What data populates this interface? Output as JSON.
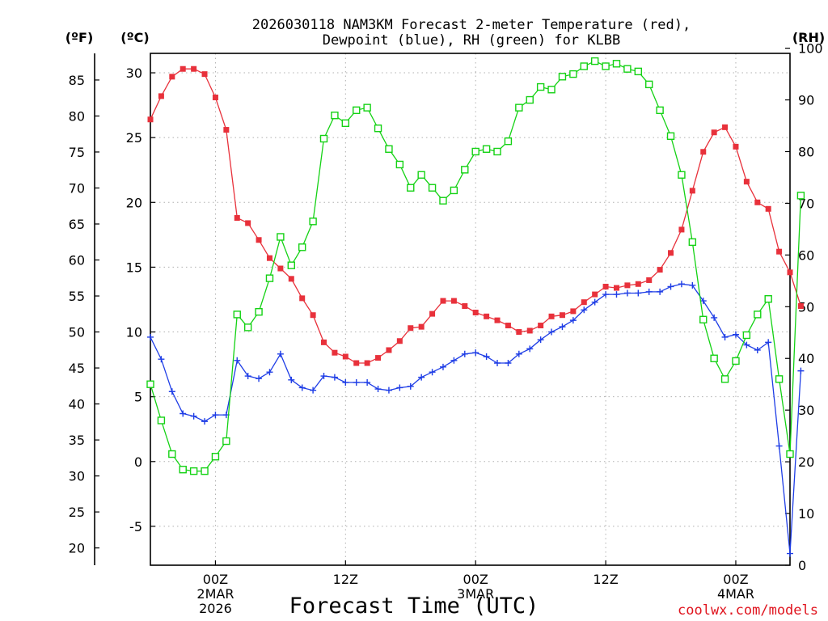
{
  "chart_data": {
    "type": "line",
    "title_lines": [
      "2026030118 NAM3KM Forecast 2-meter Temperature (red),",
      "Dewpoint (blue), RH (green) for KLBB"
    ],
    "xlabel": "Forecast Time (UTC)",
    "credit": "coolwx.com/models",
    "units": {
      "fahrenheit": "(ºF)",
      "celsius": "(ºC)",
      "rh": "(RH)"
    },
    "x_start_hour": 0,
    "x_end_hour": 59,
    "x_ticks": [
      {
        "hour": 6,
        "lines": [
          "00Z",
          "2MAR",
          "2026"
        ]
      },
      {
        "hour": 18,
        "lines": [
          "12Z"
        ]
      },
      {
        "hour": 30,
        "lines": [
          "00Z",
          "3MAR"
        ]
      },
      {
        "hour": 42,
        "lines": [
          "12Z"
        ]
      },
      {
        "hour": 54,
        "lines": [
          "00Z",
          "4MAR"
        ]
      }
    ],
    "celsius_axis": {
      "range": [
        -8,
        31.5
      ],
      "ticks": [
        -5,
        0,
        5,
        10,
        15,
        20,
        25,
        30
      ]
    },
    "fahrenheit_axis": {
      "ticks": [
        20,
        25,
        30,
        35,
        40,
        45,
        50,
        55,
        60,
        65,
        70,
        75,
        80,
        85
      ]
    },
    "rh_axis": {
      "range": [
        0,
        99
      ],
      "ticks": [
        0,
        10,
        20,
        30,
        40,
        50,
        60,
        70,
        80,
        90,
        100
      ]
    },
    "grid": true,
    "series": [
      {
        "name": "Temperature (°C)",
        "color": "#e8313b",
        "marker": "filled-square",
        "axis": "celsius",
        "values": [
          26.4,
          28.2,
          29.7,
          30.3,
          30.3,
          29.9,
          28.1,
          25.6,
          18.8,
          18.4,
          17.1,
          15.7,
          14.9,
          14.1,
          12.6,
          11.3,
          9.2,
          8.4,
          8.1,
          7.6,
          7.6,
          8.0,
          8.6,
          9.3,
          10.3,
          10.4,
          11.4,
          12.4,
          12.4,
          12.0,
          11.5,
          11.2,
          10.9,
          10.5,
          10.0,
          10.1,
          10.5,
          11.2,
          11.3,
          11.6,
          12.3,
          12.9,
          13.5,
          13.4,
          13.6,
          13.7,
          14.0,
          14.8,
          16.1,
          17.9,
          20.9,
          23.9,
          25.4,
          25.8,
          24.3,
          21.6,
          20.0,
          19.5,
          16.2,
          14.6,
          12.0
        ]
      },
      {
        "name": "Dewpoint (°C)",
        "color": "#1e3de6",
        "marker": "plus",
        "axis": "celsius",
        "values": [
          9.6,
          7.9,
          5.4,
          3.7,
          3.5,
          3.1,
          3.6,
          3.6,
          7.8,
          6.6,
          6.4,
          6.9,
          8.3,
          6.3,
          5.7,
          5.5,
          6.6,
          6.5,
          6.1,
          6.1,
          6.1,
          5.6,
          5.5,
          5.7,
          5.8,
          6.5,
          6.9,
          7.3,
          7.8,
          8.3,
          8.4,
          8.1,
          7.6,
          7.6,
          8.3,
          8.7,
          9.4,
          10.0,
          10.4,
          10.9,
          11.7,
          12.3,
          12.9,
          12.9,
          13.0,
          13.0,
          13.1,
          13.1,
          13.5,
          13.7,
          13.6,
          12.4,
          11.1,
          9.6,
          9.8,
          9.0,
          8.6,
          9.2,
          1.2,
          -7.1,
          7.0
        ]
      },
      {
        "name": "RH (%)",
        "color": "#14d214",
        "marker": "open-square",
        "axis": "rh",
        "values": [
          35,
          28,
          21.5,
          18.5,
          18.2,
          18.2,
          21,
          24,
          48.5,
          46,
          49,
          55.5,
          63.5,
          58,
          61.5,
          66.5,
          82.5,
          87,
          85.5,
          88,
          88.5,
          84.5,
          80.5,
          77.5,
          73,
          75.5,
          73,
          70.5,
          72.5,
          76.5,
          80,
          80.5,
          80,
          82,
          88.5,
          90,
          92.5,
          92,
          94.5,
          95,
          96.5,
          97.5,
          96.5,
          97,
          96,
          95.5,
          93,
          88,
          83,
          75.5,
          62.5,
          47.5,
          40,
          36,
          39.5,
          44.5,
          48.5,
          51.5,
          36,
          21.5,
          71.5
        ]
      }
    ]
  }
}
